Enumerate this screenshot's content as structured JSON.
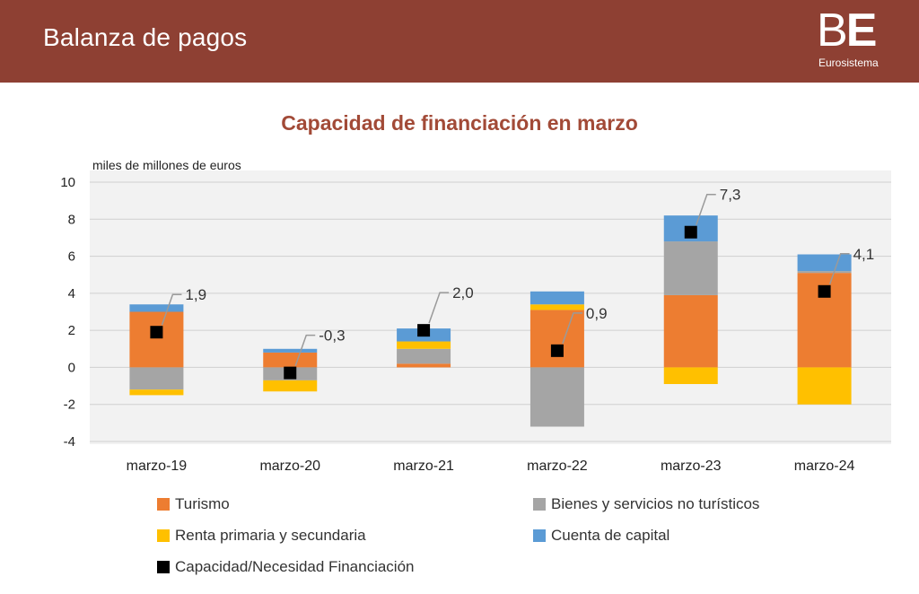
{
  "header": {
    "title": "Balanza de pagos",
    "logo_text_thin": "B",
    "logo_text_bold": "E",
    "logo_sub": "Eurosistema"
  },
  "chart_data": {
    "type": "bar",
    "stacked": true,
    "title": "Capacidad de financiación en marzo",
    "unit": "miles de millones de euros",
    "categories": [
      "marzo-19",
      "marzo-20",
      "marzo-21",
      "marzo-22",
      "marzo-23",
      "marzo-24"
    ],
    "ylim": [
      -4,
      10
    ],
    "yticks": [
      -4,
      -2,
      0,
      2,
      4,
      6,
      8,
      10
    ],
    "grid": true,
    "legend_position": "bottom",
    "series": [
      {
        "name": "Turismo",
        "color": "#ed7d31",
        "values": [
          3.0,
          0.8,
          0.2,
          3.1,
          3.9,
          5.1
        ]
      },
      {
        "name": "Bienes y servicios no turísticos",
        "color": "#a5a5a5",
        "values": [
          -1.2,
          -0.7,
          0.8,
          -3.2,
          2.9,
          0.1
        ]
      },
      {
        "name": "Renta primaria y secundaria",
        "color": "#ffc000",
        "values": [
          -0.3,
          -0.6,
          0.4,
          0.3,
          -0.9,
          -2.0
        ]
      },
      {
        "name": "Cuenta de capital",
        "color": "#5b9bd5",
        "values": [
          0.4,
          0.2,
          0.7,
          0.7,
          1.4,
          0.9
        ]
      }
    ],
    "net": {
      "name": "Capacidad/Necesidad Financiación",
      "color": "#000000",
      "values": [
        1.9,
        -0.3,
        2.0,
        0.9,
        7.3,
        4.1
      ],
      "labels": [
        "1,9",
        "-0,3",
        "2,0",
        "0,9",
        "7,3",
        "4,1"
      ]
    }
  }
}
